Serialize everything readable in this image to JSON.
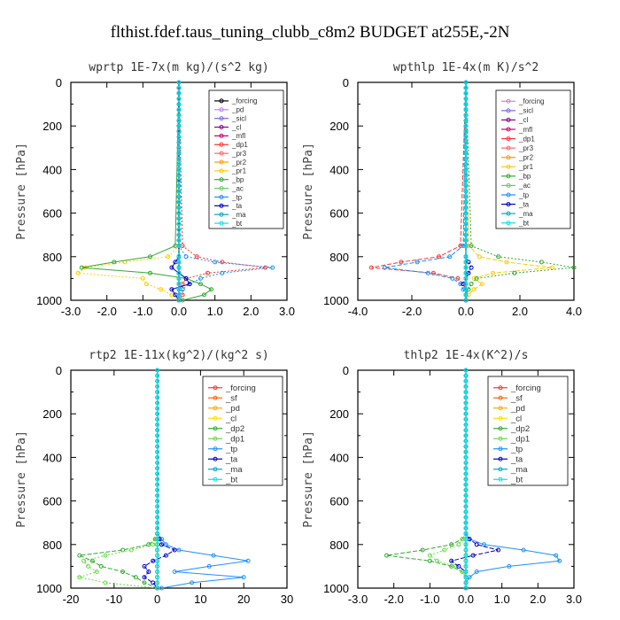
{
  "figure_title": "flthist.fdef.taus_tuning_clubb_c8m2  BUDGET at255E,-2N",
  "chart_data": [
    {
      "type": "line",
      "title": "wprtp  1E-7x(m kg)/(s^2 kg)",
      "ylabel": "Pressure [hPa]",
      "xlim": [
        -3.0,
        3.0
      ],
      "ylim": [
        0,
        1000
      ],
      "y_inverted": true,
      "xticks": [
        "-3.0",
        "-2.0",
        "-1.0",
        "0.0",
        "1.0",
        "2.0",
        "3.0"
      ],
      "yticks": [
        "0",
        "200",
        "400",
        "600",
        "800",
        "1000"
      ],
      "legend_position": "upper-right",
      "y": [
        750,
        800,
        825,
        850,
        875,
        900,
        925,
        950,
        975,
        1000
      ],
      "series": [
        {
          "name": "_forcing",
          "color": "#000000",
          "values": [
            0,
            0,
            0,
            0,
            0,
            0,
            0,
            0,
            0,
            0
          ]
        },
        {
          "name": "_pd",
          "color": "#c080ff",
          "values": [
            0,
            0,
            0,
            0,
            0,
            0,
            0,
            0,
            0,
            0
          ]
        },
        {
          "name": "_sicl",
          "color": "#7b68ee",
          "values": [
            0,
            0,
            0,
            0,
            0,
            0,
            0,
            0,
            0,
            0
          ]
        },
        {
          "name": "_cl",
          "color": "#8b008b",
          "values": [
            0,
            0,
            0,
            0,
            0,
            0,
            0,
            0,
            0,
            0
          ]
        },
        {
          "name": "_mfl",
          "color": "#cc0066",
          "values": [
            0,
            0,
            0,
            0,
            0,
            0,
            0,
            0,
            0,
            0
          ]
        },
        {
          "name": "_dp1",
          "color": "#ff3333",
          "values": [
            0.1,
            0.5,
            1.2,
            2.4,
            0.8,
            0.2,
            0.1,
            0.1,
            0.1,
            0.0
          ]
        },
        {
          "name": "_pr3",
          "color": "#ff6666",
          "values": [
            0,
            0,
            0,
            0,
            0,
            0,
            0,
            0,
            0,
            0
          ]
        },
        {
          "name": "_pr2",
          "color": "#ff9900",
          "values": [
            0,
            0,
            0,
            0,
            0,
            0,
            0,
            0,
            0,
            0
          ]
        },
        {
          "name": "_pr1",
          "color": "#ffcc00",
          "values": [
            0.0,
            -0.3,
            -1.5,
            -2.6,
            -2.8,
            -1.0,
            -0.9,
            -0.5,
            -0.2,
            0.0
          ]
        },
        {
          "name": "_bp",
          "color": "#33aa33",
          "values": [
            -0.1,
            -0.8,
            -1.8,
            -2.7,
            -0.8,
            0.2,
            0.6,
            0.9,
            0.7,
            0.1
          ]
        },
        {
          "name": "_ac",
          "color": "#66cc66",
          "values": [
            0,
            0,
            0,
            0,
            0,
            0,
            0,
            0,
            0,
            0
          ]
        },
        {
          "name": "_tp",
          "color": "#1e90ff",
          "values": [
            0.0,
            0.2,
            1.0,
            2.6,
            1.2,
            0.6,
            0.3,
            0.1,
            0.0,
            0.0
          ]
        },
        {
          "name": "_ta",
          "color": "#0000cc",
          "values": [
            0.0,
            0.0,
            -0.1,
            -0.2,
            0.0,
            0.2,
            0.3,
            -0.2,
            -0.1,
            0.0
          ]
        },
        {
          "name": "_ma",
          "color": "#00aacc",
          "values": [
            0,
            0,
            0,
            0,
            0,
            0,
            0,
            0,
            0,
            0
          ]
        },
        {
          "name": "_bt",
          "color": "#00e5ee",
          "values": [
            0,
            0,
            0,
            0,
            0,
            0,
            0,
            0,
            0,
            0
          ]
        }
      ]
    },
    {
      "type": "line",
      "title": "wpthlp  1E-4x(m K)/s^2",
      "ylabel": "Pressure [hPa]",
      "xlim": [
        -4.0,
        4.0
      ],
      "ylim": [
        0,
        1000
      ],
      "y_inverted": true,
      "xticks": [
        "-4.0",
        "-2.0",
        "0.0",
        "2.0",
        "4.0"
      ],
      "yticks": [
        "0",
        "200",
        "400",
        "600",
        "800",
        "1000"
      ],
      "legend_position": "upper-right",
      "y": [
        750,
        800,
        825,
        850,
        875,
        900,
        925,
        950,
        975,
        1000
      ],
      "series": [
        {
          "name": "_forcing",
          "color": "#cc88cc",
          "values": [
            0,
            0,
            0,
            0,
            0,
            0,
            0,
            0,
            0,
            0
          ]
        },
        {
          "name": "_sicl",
          "color": "#7b68ee",
          "values": [
            0,
            0,
            0,
            0,
            0,
            0,
            0,
            0,
            0,
            0
          ]
        },
        {
          "name": "_cl",
          "color": "#8b008b",
          "values": [
            0,
            0,
            0,
            0,
            0,
            0,
            0,
            0,
            0,
            0
          ]
        },
        {
          "name": "_mfl",
          "color": "#cc0066",
          "values": [
            0,
            0,
            0,
            0,
            0,
            0,
            0,
            0,
            0,
            0
          ]
        },
        {
          "name": "_dp1",
          "color": "#ff3333",
          "values": [
            -0.2,
            -1.0,
            -2.4,
            -3.5,
            -1.2,
            -0.3,
            -0.1,
            0.0,
            0.0,
            0.0
          ]
        },
        {
          "name": "_pr3",
          "color": "#ff6666",
          "values": [
            0,
            0,
            0,
            0,
            0,
            0,
            0,
            0,
            0,
            0
          ]
        },
        {
          "name": "_pr2",
          "color": "#ff9900",
          "values": [
            0,
            0,
            0,
            0,
            0,
            0,
            0,
            0,
            0,
            0
          ]
        },
        {
          "name": "_pr1",
          "color": "#ffcc00",
          "values": [
            0.1,
            0.5,
            1.5,
            3.2,
            1.0,
            0.3,
            0.6,
            0.3,
            0.1,
            0.0
          ]
        },
        {
          "name": "_bp",
          "color": "#33aa33",
          "values": [
            0.2,
            1.2,
            2.8,
            4.0,
            1.8,
            0.4,
            0.2,
            0.1,
            0.0,
            0.0
          ]
        },
        {
          "name": "_ac",
          "color": "#66cc66",
          "values": [
            0,
            0,
            0,
            0,
            0,
            0,
            0,
            0,
            0,
            0
          ]
        },
        {
          "name": "_tp",
          "color": "#1e90ff",
          "values": [
            -0.1,
            -0.6,
            -1.8,
            -3.0,
            -1.4,
            -0.5,
            -0.2,
            -0.1,
            0.0,
            0.0
          ]
        },
        {
          "name": "_ta",
          "color": "#0000cc",
          "values": [
            0.0,
            0.0,
            0.1,
            0.2,
            0.1,
            0.0,
            -0.1,
            0.0,
            0.0,
            0.0
          ]
        },
        {
          "name": "_ma",
          "color": "#00aacc",
          "values": [
            0,
            0,
            0,
            0,
            0,
            0,
            0,
            0,
            0,
            0
          ]
        },
        {
          "name": "_bt",
          "color": "#00e5ee",
          "values": [
            0,
            0,
            0,
            0,
            0,
            0,
            0,
            0,
            0,
            0
          ]
        }
      ]
    },
    {
      "type": "line",
      "title": "rtp2  1E-11x(kg^2)/(kg^2 s)",
      "ylabel": "Pressure [hPa]",
      "xlim": [
        -20,
        30
      ],
      "ylim": [
        0,
        1000
      ],
      "y_inverted": true,
      "xticks": [
        "-20",
        "-10",
        "0",
        "10",
        "20",
        "30"
      ],
      "yticks": [
        "0",
        "200",
        "400",
        "600",
        "800",
        "1000"
      ],
      "legend_position": "upper-right",
      "y": [
        750,
        775,
        800,
        825,
        850,
        875,
        900,
        925,
        950,
        975,
        1000
      ],
      "series": [
        {
          "name": "_forcing",
          "color": "#ff3333",
          "values": [
            0,
            0,
            0,
            0,
            0,
            0,
            0,
            0,
            0,
            0,
            0
          ]
        },
        {
          "name": "_sf",
          "color": "#ff6600",
          "values": [
            0,
            0,
            0,
            0,
            0,
            0,
            0,
            0,
            0,
            0,
            0
          ]
        },
        {
          "name": "_pd",
          "color": "#ffaa00",
          "values": [
            0,
            0,
            0,
            0,
            0,
            0,
            0,
            0,
            0,
            0,
            0
          ]
        },
        {
          "name": "_cl",
          "color": "#ffdd00",
          "values": [
            0,
            0,
            0,
            0,
            0,
            0,
            0,
            0,
            0,
            0,
            0
          ]
        },
        {
          "name": "_dp2",
          "color": "#33aa33",
          "values": [
            0,
            -0.5,
            -2,
            -8,
            -18,
            -15,
            -13,
            -8,
            -5,
            -3,
            0
          ]
        },
        {
          "name": "_dp1",
          "color": "#66dd44",
          "values": [
            0,
            -0.3,
            -1,
            -6,
            -12,
            -17,
            -16,
            -14,
            -18,
            -12,
            0
          ]
        },
        {
          "name": "_tp",
          "color": "#1e90ff",
          "values": [
            0,
            1,
            2,
            5,
            13,
            21,
            12,
            4,
            20,
            8,
            1
          ]
        },
        {
          "name": "_ta",
          "color": "#0000cc",
          "values": [
            0,
            0.5,
            1,
            4,
            2,
            -1,
            -3,
            -2,
            -3,
            -1,
            0
          ]
        },
        {
          "name": "_ma",
          "color": "#00aacc",
          "values": [
            0,
            0,
            0,
            0,
            0,
            0,
            0,
            0,
            0,
            0,
            0
          ]
        },
        {
          "name": "_bt",
          "color": "#00e5ee",
          "values": [
            0,
            0,
            0,
            0,
            0,
            0,
            0,
            0,
            0,
            0,
            0
          ]
        }
      ]
    },
    {
      "type": "line",
      "title": "thlp2  1E-4x(K^2)/s",
      "ylabel": "Pressure [hPa]",
      "xlim": [
        -3.0,
        3.0
      ],
      "ylim": [
        0,
        1000
      ],
      "y_inverted": true,
      "xticks": [
        "-3.0",
        "-2.0",
        "-1.0",
        "0.0",
        "1.0",
        "2.0",
        "3.0"
      ],
      "yticks": [
        "0",
        "200",
        "400",
        "600",
        "800",
        "1000"
      ],
      "legend_position": "upper-right",
      "y": [
        750,
        775,
        800,
        825,
        850,
        875,
        900,
        925,
        950,
        975,
        1000
      ],
      "series": [
        {
          "name": "_forcing",
          "color": "#ff3333",
          "values": [
            0,
            0,
            0,
            0,
            0,
            0,
            0,
            0,
            0,
            0,
            0
          ]
        },
        {
          "name": "_sf",
          "color": "#ff6600",
          "values": [
            0,
            0,
            0,
            0,
            0,
            0,
            0,
            0,
            0,
            0,
            0
          ]
        },
        {
          "name": "_pd",
          "color": "#ffaa00",
          "values": [
            0,
            0,
            0,
            0,
            0,
            0,
            0,
            0,
            0,
            0,
            0
          ]
        },
        {
          "name": "_cl",
          "color": "#ffdd00",
          "values": [
            0,
            0,
            0,
            0,
            0,
            0,
            0,
            0,
            0,
            0,
            0
          ]
        },
        {
          "name": "_dp2",
          "color": "#33aa33",
          "values": [
            0,
            -0.1,
            -0.4,
            -1.2,
            -2.2,
            -1.0,
            -0.4,
            -0.1,
            0,
            0,
            0
          ]
        },
        {
          "name": "_dp1",
          "color": "#66dd44",
          "values": [
            0,
            -0.1,
            -0.2,
            -0.6,
            -1.0,
            -0.8,
            -0.3,
            -0.1,
            0,
            0,
            0
          ]
        },
        {
          "name": "_tp",
          "color": "#1e90ff",
          "values": [
            0,
            0.1,
            0.5,
            1.6,
            2.5,
            2.6,
            1.2,
            0.3,
            0.1,
            0,
            0
          ]
        },
        {
          "name": "_ta",
          "color": "#0000cc",
          "values": [
            0,
            0.1,
            0.3,
            0.9,
            0.2,
            -0.4,
            -0.2,
            0.0,
            0,
            0,
            0
          ]
        },
        {
          "name": "_ma",
          "color": "#00aacc",
          "values": [
            0,
            0,
            0,
            0,
            0,
            0,
            0,
            0,
            0,
            0,
            0
          ]
        },
        {
          "name": "_bt",
          "color": "#00e5ee",
          "values": [
            0,
            0,
            0,
            0,
            0,
            0,
            0,
            0,
            0,
            0,
            0
          ]
        }
      ]
    }
  ]
}
